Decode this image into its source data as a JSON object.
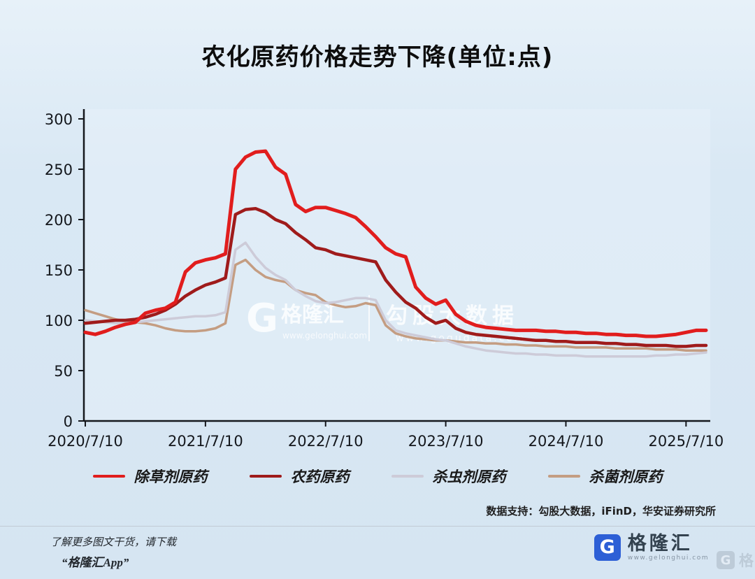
{
  "title": "农化原药价格走势下降(单位:点)",
  "watermark": {
    "logo_letter": "G",
    "brand": "格隆汇",
    "brand_url": "www.gelonghui.com",
    "partner": "勾股大数据",
    "partner_url": "www.gogudata.com"
  },
  "source_note": "数据支持：勾股大数据，iFinD，华安证券研究所",
  "footer": {
    "promo_line1": "了解更多图文干货，请下载",
    "promo_line2": "“格隆汇App”",
    "logo_letter": "G",
    "logo_text": "格隆汇",
    "logo_url": "www.gelonghui.com"
  },
  "edge_watermark": {
    "letter": "G",
    "text": "格隆汇"
  },
  "chart_data": {
    "type": "line",
    "title": "农化原药价格走势下降(单位:点)",
    "ylim": [
      0,
      300
    ],
    "y_ticks": [
      0,
      50,
      100,
      150,
      200,
      250,
      300
    ],
    "x_tick_labels": [
      "2020/7/10",
      "2021/7/10",
      "2022/7/10",
      "2023/7/10",
      "2024/7/10",
      "2025/7/10"
    ],
    "x_tick_months": [
      0,
      12,
      24,
      36,
      48,
      60
    ],
    "months_span": 62,
    "grid": false,
    "legend_position": "bottom",
    "series": [
      {
        "name": "除草剂原药",
        "color": "#e11d1d",
        "width": 5,
        "values": [
          88,
          86,
          89,
          93,
          96,
          98,
          107,
          110,
          112,
          118,
          148,
          157,
          160,
          162,
          166,
          250,
          262,
          267,
          268,
          252,
          245,
          215,
          208,
          212,
          212,
          209,
          206,
          202,
          193,
          183,
          172,
          166,
          163,
          133,
          122,
          116,
          120,
          106,
          99,
          95,
          93,
          92,
          91,
          90,
          90,
          90,
          89,
          89,
          88,
          88,
          87,
          87,
          86,
          86,
          85,
          85,
          84,
          84,
          85,
          86,
          88,
          90,
          90
        ]
      },
      {
        "name": "农药原药",
        "color": "#9f1b1b",
        "width": 4.5,
        "values": [
          97,
          98,
          99,
          100,
          100,
          101,
          103,
          106,
          110,
          116,
          124,
          130,
          135,
          138,
          142,
          205,
          210,
          211,
          207,
          200,
          196,
          187,
          180,
          172,
          170,
          166,
          164,
          162,
          160,
          158,
          140,
          128,
          118,
          112,
          103,
          97,
          100,
          92,
          88,
          86,
          85,
          84,
          83,
          82,
          81,
          80,
          80,
          79,
          79,
          78,
          78,
          78,
          77,
          77,
          76,
          76,
          75,
          75,
          75,
          74,
          74,
          75,
          75
        ]
      },
      {
        "name": "杀虫剂原药",
        "color": "#cdcbd8",
        "width": 3.5,
        "values": [
          100,
          99,
          98,
          97,
          97,
          98,
          99,
          100,
          101,
          102,
          103,
          104,
          104,
          105,
          108,
          170,
          177,
          163,
          152,
          145,
          140,
          130,
          124,
          119,
          117,
          118,
          120,
          122,
          122,
          120,
          100,
          90,
          87,
          85,
          83,
          81,
          80,
          77,
          74,
          72,
          70,
          69,
          68,
          67,
          67,
          66,
          66,
          65,
          65,
          65,
          64,
          64,
          64,
          64,
          64,
          64,
          64,
          65,
          65,
          66,
          66,
          67,
          68
        ]
      },
      {
        "name": "杀菌剂原药",
        "color": "#c49d82",
        "width": 3.5,
        "values": [
          110,
          107,
          104,
          101,
          99,
          98,
          97,
          95,
          92,
          90,
          89,
          89,
          90,
          92,
          97,
          155,
          160,
          150,
          143,
          140,
          138,
          130,
          127,
          125,
          118,
          115,
          113,
          114,
          117,
          115,
          95,
          87,
          84,
          82,
          81,
          80,
          80,
          79,
          78,
          78,
          77,
          77,
          76,
          76,
          75,
          75,
          74,
          74,
          74,
          73,
          73,
          73,
          73,
          72,
          72,
          72,
          72,
          71,
          71,
          71,
          70,
          70,
          70
        ]
      }
    ]
  }
}
